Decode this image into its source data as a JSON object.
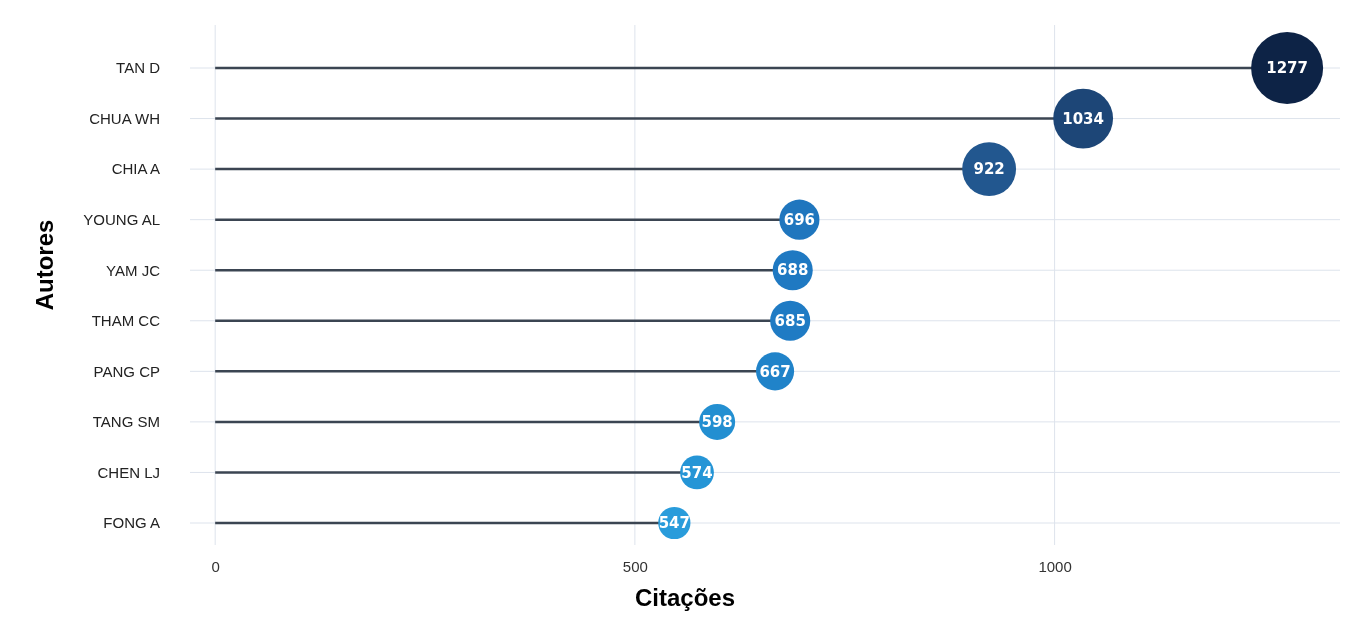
{
  "chart_data": {
    "type": "lollipop",
    "orientation": "horizontal",
    "xlabel": "Citações",
    "ylabel": "Autores",
    "categories": [
      "TAN D",
      "CHUA WH",
      "CHIA A",
      "YOUNG AL",
      "YAM JC",
      "THAM CC",
      "PANG CP",
      "TANG SM",
      "CHEN LJ",
      "FONG A"
    ],
    "values": [
      1277,
      1034,
      922,
      696,
      688,
      685,
      667,
      598,
      574,
      547
    ],
    "sizes": [
      1,
      0.69,
      0.56,
      0.31,
      0.31,
      0.31,
      0.28,
      0.25,
      0.22,
      0.2
    ],
    "colors": [
      "#0d2346",
      "#1d4677",
      "#22578f",
      "#1f76be",
      "#1f79c2",
      "#1f7bc4",
      "#2083c9",
      "#238fd1",
      "#2595d6",
      "#299cdb"
    ],
    "xlim": [
      -30,
      1340
    ],
    "xticks": [
      0,
      500,
      1000
    ],
    "grid": true,
    "data_labels": true,
    "marker": "circle"
  }
}
